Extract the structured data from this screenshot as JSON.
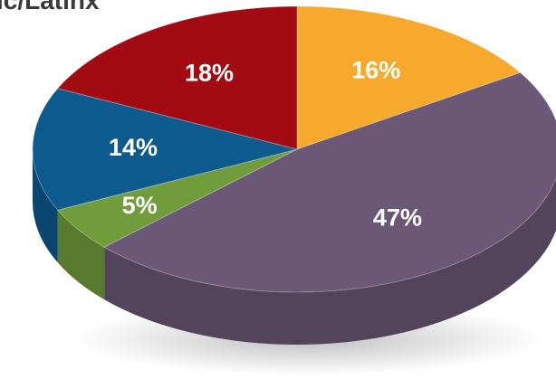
{
  "chart_data": {
    "type": "pie",
    "title": "ic/Latinx",
    "slices": [
      {
        "value": 16,
        "label": "16%",
        "color": "#f6a92c"
      },
      {
        "value": 47,
        "label": "47%",
        "color": "#6b5776"
      },
      {
        "value": 5,
        "label": "5%",
        "color": "#709c3b"
      },
      {
        "value": 14,
        "label": "14%",
        "color": "#0d5a8f"
      },
      {
        "value": 18,
        "label": "18%",
        "color": "#a20b12"
      }
    ]
  }
}
